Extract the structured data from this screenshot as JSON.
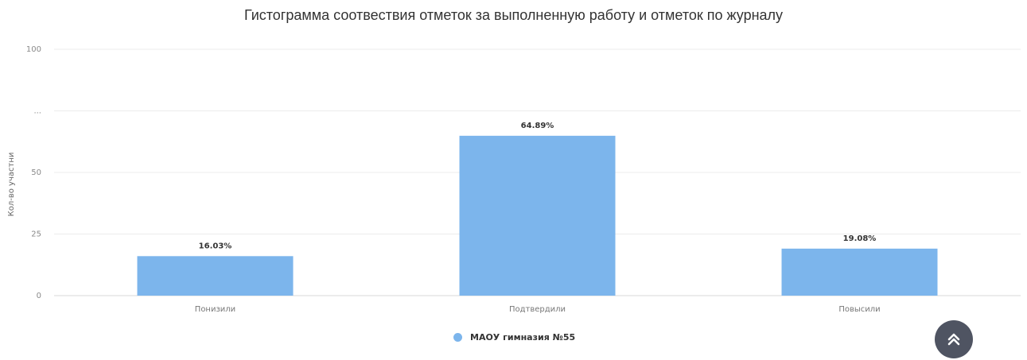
{
  "colors": {
    "series": "#7cb5ec",
    "grid": "#ececec",
    "button": "#4f5462"
  },
  "chart_data": {
    "type": "bar",
    "title": "Гистограмма соотвествия отметок за выполненную работу и отметок по журналу",
    "ylabel": "Кол-во участни",
    "xlabel": "",
    "ylim": [
      0,
      100
    ],
    "yticks": [
      "0",
      "25",
      "50",
      "...",
      "100"
    ],
    "ytick_values": [
      0,
      25,
      50,
      75,
      100
    ],
    "categories": [
      "Понизили",
      "Подтвердили",
      "Повысили"
    ],
    "series": [
      {
        "name": "МАОУ гимназия №55",
        "values": [
          16.03,
          64.89,
          19.08
        ],
        "labels": [
          "16.03%",
          "64.89%",
          "19.08%"
        ]
      }
    ],
    "grid": true,
    "legend": "bottom-center"
  },
  "scroll_top_icon": "double-chevron-up-icon"
}
